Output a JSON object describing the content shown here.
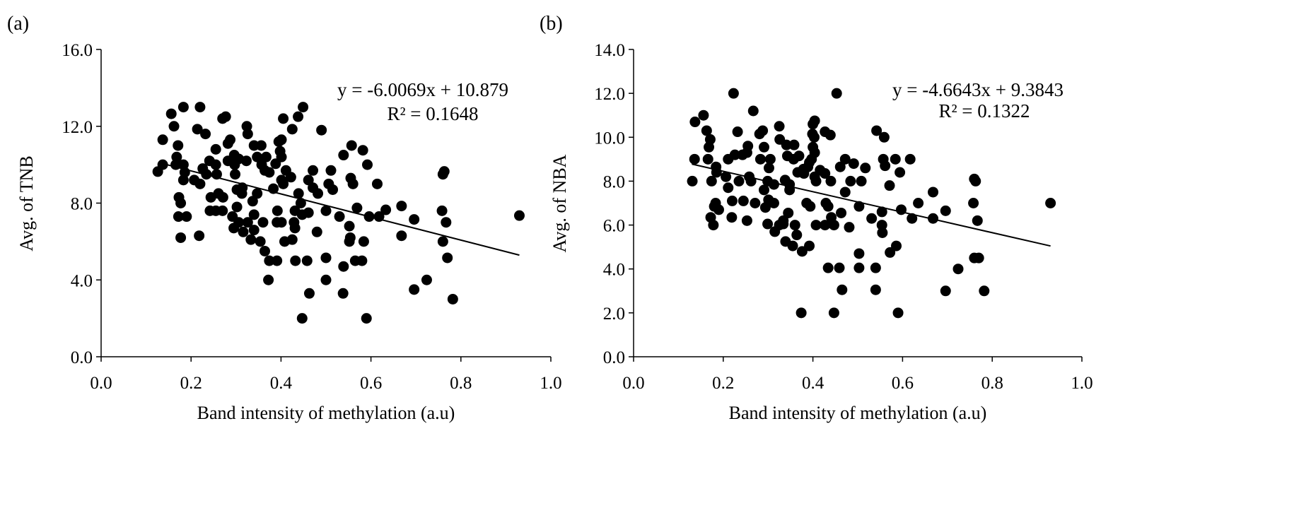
{
  "chart_data": [
    {
      "panel_label": "(a)",
      "type": "scatter",
      "xlabel": "Band intensity of methylation (a.u)",
      "ylabel": "Avg. of TNB",
      "xlim": [
        0,
        1.0
      ],
      "ylim": [
        0,
        16.0
      ],
      "xticks": [
        "0.0",
        "0.2",
        "0.4",
        "0.6",
        "0.8",
        "1.0"
      ],
      "yticks": [
        "0.0",
        "4.0",
        "8.0",
        "12.0",
        "16.0"
      ],
      "xtick_values": [
        0,
        0.2,
        0.4,
        0.6,
        0.8,
        1.0
      ],
      "ytick_values": [
        0,
        4,
        8,
        12,
        16
      ],
      "trendline": {
        "slope": -6.0069,
        "intercept": 10.879,
        "x_range": [
          0.13,
          0.93
        ]
      },
      "equation": "y = -6.0069x + 10.879",
      "r_squared": "R² = 0.1648",
      "points": [
        [
          0.126,
          9.64
        ],
        [
          0.137,
          10.0
        ],
        [
          0.137,
          11.3
        ],
        [
          0.156,
          12.65
        ],
        [
          0.162,
          12.0
        ],
        [
          0.183,
          13.0
        ],
        [
          0.171,
          11.0
        ],
        [
          0.168,
          10.4
        ],
        [
          0.166,
          10.0
        ],
        [
          0.183,
          10.0
        ],
        [
          0.186,
          9.6
        ],
        [
          0.183,
          9.2
        ],
        [
          0.173,
          8.3
        ],
        [
          0.177,
          8.0
        ],
        [
          0.172,
          7.3
        ],
        [
          0.19,
          7.3
        ],
        [
          0.177,
          6.2
        ],
        [
          0.22,
          13.0
        ],
        [
          0.214,
          11.85
        ],
        [
          0.232,
          11.6
        ],
        [
          0.207,
          9.2
        ],
        [
          0.22,
          9.0
        ],
        [
          0.226,
          9.8
        ],
        [
          0.234,
          9.5
        ],
        [
          0.241,
          10.2
        ],
        [
          0.255,
          10.0
        ],
        [
          0.255,
          10.8
        ],
        [
          0.257,
          9.5
        ],
        [
          0.244,
          8.3
        ],
        [
          0.261,
          8.5
        ],
        [
          0.271,
          8.3
        ],
        [
          0.242,
          7.6
        ],
        [
          0.255,
          7.6
        ],
        [
          0.27,
          7.6
        ],
        [
          0.218,
          6.3
        ],
        [
          0.27,
          12.4
        ],
        [
          0.277,
          12.5
        ],
        [
          0.282,
          11.1
        ],
        [
          0.287,
          11.3
        ],
        [
          0.282,
          10.2
        ],
        [
          0.296,
          10.5
        ],
        [
          0.297,
          10.0
        ],
        [
          0.306,
          10.3
        ],
        [
          0.298,
          9.5
        ],
        [
          0.302,
          8.7
        ],
        [
          0.313,
          8.5
        ],
        [
          0.314,
          8.8
        ],
        [
          0.302,
          7.8
        ],
        [
          0.292,
          7.3
        ],
        [
          0.295,
          6.7
        ],
        [
          0.306,
          7.0
        ],
        [
          0.316,
          6.5
        ],
        [
          0.324,
          12.0
        ],
        [
          0.326,
          11.6
        ],
        [
          0.323,
          10.2
        ],
        [
          0.34,
          11.0
        ],
        [
          0.356,
          11.0
        ],
        [
          0.347,
          10.4
        ],
        [
          0.357,
          10.0
        ],
        [
          0.367,
          10.4
        ],
        [
          0.374,
          9.6
        ],
        [
          0.364,
          9.7
        ],
        [
          0.347,
          8.5
        ],
        [
          0.337,
          8.1
        ],
        [
          0.34,
          7.4
        ],
        [
          0.326,
          7.0
        ],
        [
          0.34,
          6.6
        ],
        [
          0.333,
          6.1
        ],
        [
          0.354,
          6.0
        ],
        [
          0.36,
          7.0
        ],
        [
          0.364,
          5.5
        ],
        [
          0.374,
          5.0
        ],
        [
          0.391,
          5.0
        ],
        [
          0.372,
          4.0
        ],
        [
          0.383,
          8.75
        ],
        [
          0.392,
          7.6
        ],
        [
          0.391,
          7.0
        ],
        [
          0.401,
          7.0
        ],
        [
          0.388,
          10.05
        ],
        [
          0.398,
          10.7
        ],
        [
          0.395,
          11.2
        ],
        [
          0.401,
          11.3
        ],
        [
          0.405,
          12.4
        ],
        [
          0.401,
          10.4
        ],
        [
          0.411,
          9.7
        ],
        [
          0.401,
          9.2
        ],
        [
          0.405,
          9.0
        ],
        [
          0.422,
          9.35
        ],
        [
          0.425,
          11.85
        ],
        [
          0.438,
          12.5
        ],
        [
          0.449,
          13.0
        ],
        [
          0.439,
          8.5
        ],
        [
          0.444,
          8.0
        ],
        [
          0.431,
          7.6
        ],
        [
          0.429,
          7.0
        ],
        [
          0.431,
          6.7
        ],
        [
          0.408,
          6.0
        ],
        [
          0.425,
          6.1
        ],
        [
          0.432,
          5.0
        ],
        [
          0.458,
          5.0
        ],
        [
          0.447,
          7.4
        ],
        [
          0.461,
          7.5
        ],
        [
          0.461,
          9.2
        ],
        [
          0.471,
          9.7
        ],
        [
          0.471,
          8.8
        ],
        [
          0.482,
          8.5
        ],
        [
          0.48,
          6.5
        ],
        [
          0.49,
          11.8
        ],
        [
          0.463,
          3.3
        ],
        [
          0.447,
          2.0
        ],
        [
          0.5,
          7.6
        ],
        [
          0.5,
          5.15
        ],
        [
          0.5,
          4.0
        ],
        [
          0.511,
          9.7
        ],
        [
          0.506,
          9.0
        ],
        [
          0.515,
          8.7
        ],
        [
          0.53,
          7.3
        ],
        [
          0.539,
          10.5
        ],
        [
          0.557,
          11.0
        ],
        [
          0.555,
          9.3
        ],
        [
          0.56,
          9.0
        ],
        [
          0.552,
          6.8
        ],
        [
          0.554,
          6.2
        ],
        [
          0.552,
          6.0
        ],
        [
          0.539,
          4.7
        ],
        [
          0.538,
          3.3
        ],
        [
          0.569,
          7.75
        ],
        [
          0.565,
          5.0
        ],
        [
          0.58,
          5.0
        ],
        [
          0.582,
          10.75
        ],
        [
          0.592,
          10.0
        ],
        [
          0.596,
          7.3
        ],
        [
          0.584,
          6.0
        ],
        [
          0.59,
          2.0
        ],
        [
          0.614,
          9.0
        ],
        [
          0.618,
          7.3
        ],
        [
          0.633,
          7.65
        ],
        [
          0.668,
          7.85
        ],
        [
          0.668,
          6.3
        ],
        [
          0.696,
          7.15
        ],
        [
          0.696,
          3.5
        ],
        [
          0.724,
          4.0
        ],
        [
          0.76,
          9.5
        ],
        [
          0.763,
          9.65
        ],
        [
          0.758,
          7.6
        ],
        [
          0.767,
          7.0
        ],
        [
          0.76,
          6.0
        ],
        [
          0.77,
          5.15
        ],
        [
          0.782,
          3.0
        ],
        [
          0.93,
          7.35
        ]
      ]
    },
    {
      "panel_label": "(b)",
      "type": "scatter",
      "xlabel": "Band intensity of methylation (a.u)",
      "ylabel": "Avg. of NBA",
      "xlim": [
        0,
        1.0
      ],
      "ylim": [
        0,
        14.0
      ],
      "xticks": [
        "0.0",
        "0.2",
        "0.4",
        "0.6",
        "0.8",
        "1.0"
      ],
      "yticks": [
        "0.0",
        "2.0",
        "4.0",
        "6.0",
        "8.0",
        "10.0",
        "12.0",
        "14.0"
      ],
      "xtick_values": [
        0,
        0.2,
        0.4,
        0.6,
        0.8,
        1.0
      ],
      "ytick_values": [
        0,
        2,
        4,
        6,
        8,
        10,
        12,
        14
      ],
      "trendline": {
        "slope": -4.6643,
        "intercept": 9.3843,
        "x_range": [
          0.13,
          0.93
        ]
      },
      "equation": "y = -4.6643x + 9.3843",
      "r_squared": "R² = 0.1322",
      "points": [
        [
          0.131,
          8.0
        ],
        [
          0.136,
          9.0
        ],
        [
          0.137,
          10.7
        ],
        [
          0.156,
          11.0
        ],
        [
          0.163,
          10.3
        ],
        [
          0.171,
          9.9
        ],
        [
          0.168,
          9.55
        ],
        [
          0.166,
          9.0
        ],
        [
          0.184,
          8.65
        ],
        [
          0.185,
          8.4
        ],
        [
          0.174,
          8.0
        ],
        [
          0.183,
          7.0
        ],
        [
          0.18,
          6.85
        ],
        [
          0.19,
          6.7
        ],
        [
          0.172,
          6.35
        ],
        [
          0.178,
          6.0
        ],
        [
          0.223,
          12.0
        ],
        [
          0.232,
          10.25
        ],
        [
          0.211,
          9.0
        ],
        [
          0.226,
          9.2
        ],
        [
          0.243,
          9.2
        ],
        [
          0.255,
          9.6
        ],
        [
          0.253,
          9.3
        ],
        [
          0.206,
          8.2
        ],
        [
          0.211,
          7.7
        ],
        [
          0.235,
          8.0
        ],
        [
          0.258,
          8.2
        ],
        [
          0.262,
          8.0
        ],
        [
          0.22,
          7.1
        ],
        [
          0.245,
          7.1
        ],
        [
          0.271,
          7.0
        ],
        [
          0.219,
          6.35
        ],
        [
          0.253,
          6.2
        ],
        [
          0.267,
          11.2
        ],
        [
          0.281,
          10.15
        ],
        [
          0.288,
          10.3
        ],
        [
          0.291,
          9.55
        ],
        [
          0.283,
          9.0
        ],
        [
          0.305,
          9.0
        ],
        [
          0.302,
          8.6
        ],
        [
          0.299,
          8.0
        ],
        [
          0.313,
          7.85
        ],
        [
          0.291,
          7.6
        ],
        [
          0.301,
          7.15
        ],
        [
          0.313,
          7.0
        ],
        [
          0.294,
          6.8
        ],
        [
          0.299,
          6.05
        ],
        [
          0.315,
          5.7
        ],
        [
          0.325,
          10.5
        ],
        [
          0.326,
          9.9
        ],
        [
          0.341,
          9.65
        ],
        [
          0.358,
          9.65
        ],
        [
          0.343,
          9.15
        ],
        [
          0.357,
          9.0
        ],
        [
          0.369,
          9.15
        ],
        [
          0.338,
          8.05
        ],
        [
          0.348,
          7.85
        ],
        [
          0.348,
          7.6
        ],
        [
          0.345,
          6.55
        ],
        [
          0.334,
          6.2
        ],
        [
          0.325,
          6.0
        ],
        [
          0.334,
          6.05
        ],
        [
          0.36,
          6.0
        ],
        [
          0.364,
          5.55
        ],
        [
          0.339,
          5.25
        ],
        [
          0.355,
          5.05
        ],
        [
          0.376,
          4.8
        ],
        [
          0.392,
          5.05
        ],
        [
          0.366,
          8.4
        ],
        [
          0.379,
          8.55
        ],
        [
          0.38,
          8.35
        ],
        [
          0.392,
          8.85
        ],
        [
          0.389,
          8.65
        ],
        [
          0.386,
          7.0
        ],
        [
          0.394,
          6.85
        ],
        [
          0.404,
          10.75
        ],
        [
          0.4,
          10.6
        ],
        [
          0.399,
          10.15
        ],
        [
          0.403,
          10.0
        ],
        [
          0.4,
          9.55
        ],
        [
          0.404,
          9.3
        ],
        [
          0.397,
          9.0
        ],
        [
          0.404,
          8.2
        ],
        [
          0.407,
          8.0
        ],
        [
          0.416,
          8.5
        ],
        [
          0.427,
          8.35
        ],
        [
          0.407,
          6.0
        ],
        [
          0.427,
          6.0
        ],
        [
          0.447,
          6.0
        ],
        [
          0.441,
          6.35
        ],
        [
          0.429,
          7.0
        ],
        [
          0.434,
          6.85
        ],
        [
          0.44,
          8.0
        ],
        [
          0.427,
          10.25
        ],
        [
          0.439,
          10.1
        ],
        [
          0.453,
          12.0
        ],
        [
          0.463,
          6.55
        ],
        [
          0.472,
          7.5
        ],
        [
          0.461,
          8.65
        ],
        [
          0.472,
          9.0
        ],
        [
          0.484,
          8.0
        ],
        [
          0.491,
          8.8
        ],
        [
          0.503,
          6.85
        ],
        [
          0.508,
          8.0
        ],
        [
          0.517,
          8.6
        ],
        [
          0.481,
          5.9
        ],
        [
          0.434,
          4.05
        ],
        [
          0.459,
          4.05
        ],
        [
          0.465,
          3.05
        ],
        [
          0.503,
          4.7
        ],
        [
          0.503,
          4.05
        ],
        [
          0.531,
          6.3
        ],
        [
          0.542,
          10.3
        ],
        [
          0.559,
          10.0
        ],
        [
          0.557,
          9.0
        ],
        [
          0.561,
          8.7
        ],
        [
          0.571,
          7.8
        ],
        [
          0.554,
          6.6
        ],
        [
          0.554,
          6.0
        ],
        [
          0.555,
          5.65
        ],
        [
          0.54,
          4.05
        ],
        [
          0.54,
          3.05
        ],
        [
          0.572,
          4.75
        ],
        [
          0.586,
          5.05
        ],
        [
          0.584,
          9.0
        ],
        [
          0.594,
          8.4
        ],
        [
          0.597,
          6.7
        ],
        [
          0.617,
          9.0
        ],
        [
          0.621,
          6.3
        ],
        [
          0.635,
          7.0
        ],
        [
          0.374,
          2.0
        ],
        [
          0.447,
          2.0
        ],
        [
          0.59,
          2.0
        ],
        [
          0.668,
          7.5
        ],
        [
          0.668,
          6.3
        ],
        [
          0.696,
          6.65
        ],
        [
          0.696,
          3.0
        ],
        [
          0.724,
          4.0
        ],
        [
          0.76,
          8.1
        ],
        [
          0.763,
          8.0
        ],
        [
          0.758,
          7.0
        ],
        [
          0.767,
          6.2
        ],
        [
          0.76,
          4.5
        ],
        [
          0.77,
          4.5
        ],
        [
          0.782,
          3.0
        ],
        [
          0.93,
          7.0
        ]
      ]
    }
  ]
}
